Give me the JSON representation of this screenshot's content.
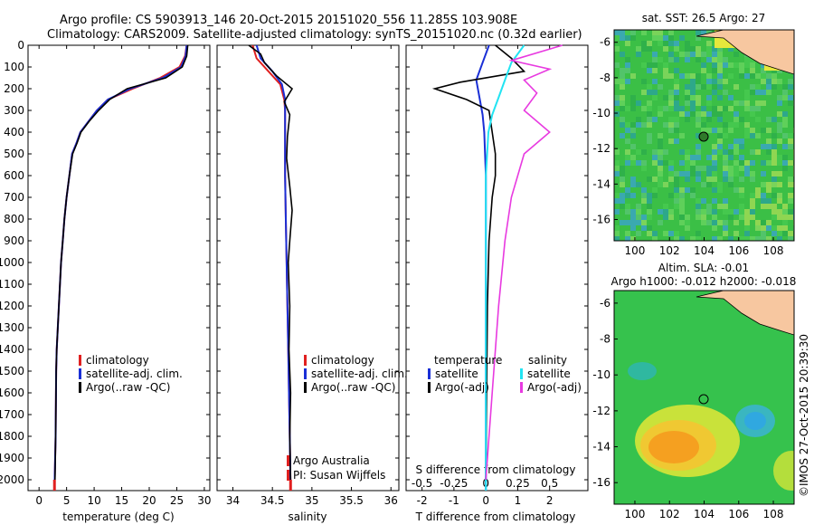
{
  "header": {
    "line1": "Argo profile: CS 5903913_146 20-Oct-2015 20151020_556 11.285S 103.908E",
    "line2": "Climatology: CARS2009. Satellite-adjusted climatology: synTS_20151020.nc (0.32d earlier)"
  },
  "colors": {
    "climatology": "#e02020",
    "satellite": "#1a2fd6",
    "argo": "#000000",
    "sat_salinity": "#22e4f2",
    "argo_adj_salinity": "#e83ae0",
    "map_green": "#38c24a",
    "land": "#f7c7a0",
    "marker": "#2f7a2a"
  },
  "depth_axis": {
    "ticks": [
      "0",
      "100",
      "200",
      "300",
      "400",
      "500",
      "600",
      "700",
      "800",
      "900",
      "1000",
      "1100",
      "1200",
      "1300",
      "1400",
      "1500",
      "1600",
      "1700",
      "1800",
      "1900",
      "2000"
    ],
    "range": [
      0,
      2050
    ]
  },
  "panels": {
    "temperature": {
      "xlabel": "temperature (deg C)",
      "xticks": [
        "0",
        "5",
        "10",
        "15",
        "20",
        "25",
        "30"
      ],
      "xlim": [
        -2,
        31
      ]
    },
    "salinity": {
      "xlabel": "salinity",
      "xticks": [
        "34",
        "34.5",
        "35",
        "35.5",
        "36"
      ],
      "xlim": [
        33.8,
        36.1
      ]
    },
    "difference": {
      "xlabel": "T difference from climatology",
      "xticks": [
        "-2",
        "-1",
        "0",
        "1",
        "2"
      ],
      "top_label": "S difference from climatology",
      "top_ticks": [
        "-0.5",
        "-0.25",
        "0",
        "0.25",
        "0.5"
      ],
      "xlim": [
        -2.5,
        3.2
      ]
    }
  },
  "legend_left": {
    "items": [
      "climatology",
      "satellite-adj. clim.",
      "Argo(..raw -QC)"
    ]
  },
  "legend_mid": {
    "items": [
      "climatology",
      "satellite-adj. clim.",
      "Argo(..raw -QC)"
    ]
  },
  "legend_right": {
    "temp_header": "temperature",
    "sal_header": "salinity",
    "temp_items": [
      "satellite",
      "Argo(-adj)"
    ],
    "sal_items": [
      "satellite",
      "Argo(-adj)"
    ]
  },
  "credit": {
    "line1": "Argo Australia",
    "line2": "PI: Susan Wijffels"
  },
  "map_sst": {
    "title": "sat. SST: 26.5 Argo: 27",
    "yticks": [
      "-6",
      "-8",
      "-10",
      "-12",
      "-14",
      "-16"
    ],
    "xticks": [
      "100",
      "102",
      "104",
      "106",
      "108"
    ]
  },
  "map_sla": {
    "title1": "Altim. SLA: -0.01",
    "title2": "Argo h1000: -0.012 h2000: -0.018",
    "yticks": [
      "-6",
      "-8",
      "-10",
      "-12",
      "-14",
      "-16"
    ],
    "xticks": [
      "100",
      "102",
      "104",
      "106",
      "108"
    ]
  },
  "stamp": "©IMOS 27-Oct-2015 20:39:30",
  "chart_data": [
    {
      "type": "line",
      "name": "temperature profile",
      "xlabel": "temperature (deg C)",
      "ylabel": "",
      "xlim": [
        -2,
        31
      ],
      "ylim": [
        2050,
        0
      ],
      "series": [
        {
          "name": "climatology",
          "x": [
            26.8,
            26.5,
            25.5,
            22,
            17,
            12.5,
            10.5,
            9,
            7.5,
            6.8,
            6.0,
            5.5,
            5.0,
            4.6,
            4.3,
            4.0,
            3.8,
            3.6,
            3.4,
            3.2,
            3.1,
            3.0,
            2.8
          ],
          "y": [
            0,
            50,
            100,
            150,
            200,
            250,
            300,
            350,
            400,
            450,
            500,
            600,
            700,
            800,
            900,
            1000,
            1100,
            1200,
            1300,
            1400,
            1500,
            1800,
            2050
          ]
        },
        {
          "name": "satellite-adj. clim.",
          "x": [
            26.8,
            26.6,
            25.8,
            22.5,
            16.5,
            12.5,
            10.5,
            9,
            7.5,
            6.8,
            6.0,
            5.5,
            5.0,
            4.6,
            4.3,
            4.0,
            3.8,
            3.6,
            3.4,
            3.2,
            3.1,
            3.0,
            2.8
          ],
          "y": [
            0,
            50,
            100,
            150,
            200,
            250,
            300,
            350,
            400,
            450,
            500,
            600,
            700,
            800,
            900,
            1000,
            1100,
            1200,
            1300,
            1400,
            1500,
            1800,
            2050
          ]
        },
        {
          "name": "Argo(..raw -QC)",
          "x": [
            27.0,
            26.8,
            26.0,
            23,
            16,
            12.8,
            10.8,
            9.1,
            7.6,
            6.9,
            6.1,
            5.5,
            5.0,
            4.6,
            4.3,
            4.0,
            3.8,
            3.6,
            3.4,
            3.2,
            3.1,
            3.0,
            2.9
          ],
          "y": [
            0,
            50,
            100,
            150,
            200,
            250,
            300,
            350,
            400,
            450,
            500,
            600,
            700,
            800,
            900,
            1000,
            1100,
            1200,
            1300,
            1400,
            1500,
            1800,
            2000
          ]
        }
      ]
    },
    {
      "type": "line",
      "name": "salinity profile",
      "xlabel": "salinity",
      "ylabel": "",
      "xlim": [
        33.8,
        36.1
      ],
      "ylim": [
        2050,
        0
      ],
      "series": [
        {
          "name": "climatology",
          "x": [
            34.25,
            34.3,
            34.45,
            34.6,
            34.65,
            34.66,
            34.66,
            34.66,
            34.66,
            34.67,
            34.68,
            34.69,
            34.7,
            34.71,
            34.72,
            34.73
          ],
          "y": [
            0,
            60,
            120,
            180,
            250,
            300,
            400,
            500,
            600,
            800,
            1000,
            1200,
            1400,
            1600,
            1800,
            2050
          ]
        },
        {
          "name": "satellite-adj. clim.",
          "x": [
            34.3,
            34.35,
            34.5,
            34.62,
            34.66,
            34.66,
            34.66,
            34.66,
            34.66,
            34.67,
            34.68,
            34.69,
            34.7,
            34.71,
            34.72,
            34.73
          ],
          "y": [
            0,
            60,
            120,
            180,
            250,
            300,
            400,
            500,
            600,
            800,
            1000,
            1200,
            1400,
            1600,
            1800,
            2050
          ]
        },
        {
          "name": "Argo(..raw -QC)",
          "x": [
            34.2,
            34.35,
            34.4,
            34.55,
            34.75,
            34.65,
            34.72,
            34.69,
            34.68,
            34.72,
            34.75,
            34.72,
            34.7,
            34.72,
            34.71,
            34.73,
            34.72,
            34.73
          ],
          "y": [
            0,
            40,
            80,
            140,
            200,
            260,
            320,
            420,
            520,
            650,
            760,
            900,
            1000,
            1200,
            1400,
            1600,
            1800,
            2000
          ]
        }
      ]
    },
    {
      "type": "line",
      "name": "difference from climatology",
      "xlabel": "T difference from climatology",
      "ylabel": "",
      "xlim": [
        -2.5,
        3.2
      ],
      "ylim": [
        2050,
        0
      ],
      "series": [
        {
          "name": "temperature satellite",
          "x": [
            0.1,
            -0.1,
            -0.3,
            -0.2,
            -0.1,
            -0.05,
            0,
            0,
            0
          ],
          "y": [
            0,
            80,
            160,
            240,
            320,
            400,
            600,
            1000,
            2050
          ]
        },
        {
          "name": "temperature Argo(-adj)",
          "x": [
            0.3,
            0.8,
            1.2,
            -0.8,
            -1.6,
            -0.6,
            0.1,
            0.2,
            0.3,
            0.3,
            0.2,
            0.1,
            0.05,
            0
          ],
          "y": [
            0,
            60,
            120,
            170,
            200,
            250,
            300,
            400,
            500,
            600,
            700,
            900,
            1200,
            2000
          ]
        },
        {
          "name": "salinity satellite",
          "x": [
            0.3,
            0.2,
            0.15,
            0.1,
            0.05,
            0.02,
            0,
            0,
            0
          ],
          "y": [
            0,
            80,
            160,
            240,
            320,
            400,
            600,
            1000,
            2050
          ]
        },
        {
          "name": "salinity Argo(-adj)",
          "x": [
            0.6,
            0.2,
            0.5,
            0.3,
            0.4,
            0.3,
            0.5,
            0.3,
            0.2,
            0.15,
            0.1,
            0.05,
            0
          ],
          "y": [
            0,
            70,
            110,
            160,
            220,
            300,
            400,
            500,
            700,
            900,
            1200,
            1600,
            2000
          ]
        }
      ]
    }
  ]
}
